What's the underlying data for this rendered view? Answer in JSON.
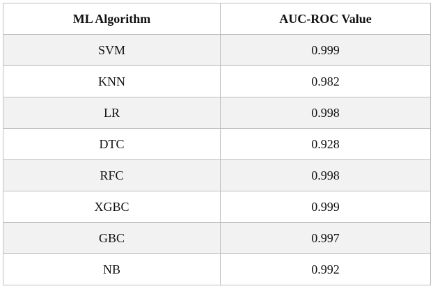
{
  "table": {
    "header": [
      "ML Algorithm",
      "AUC-ROC Value"
    ],
    "rows": [
      [
        "SVM",
        "0.999"
      ],
      [
        "KNN",
        "0.982"
      ],
      [
        "LR",
        "0.998"
      ],
      [
        "DTC",
        "0.928"
      ],
      [
        "RFC",
        "0.998"
      ],
      [
        "XGBC",
        "0.999"
      ],
      [
        "GBC",
        "0.997"
      ],
      [
        "NB",
        "0.992"
      ]
    ]
  }
}
